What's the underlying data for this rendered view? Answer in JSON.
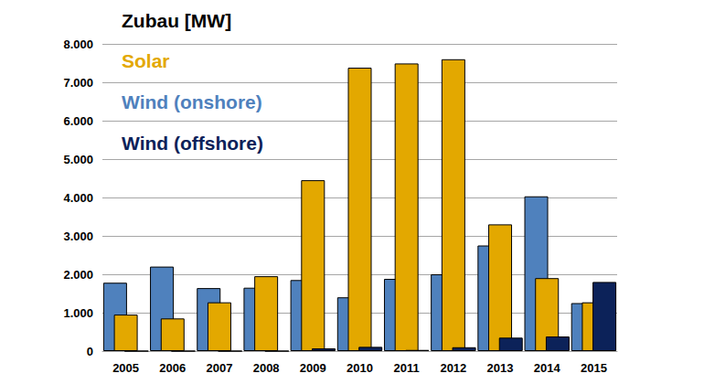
{
  "chart_data": {
    "type": "bar",
    "title": "Zubau [MW]",
    "categories": [
      "2005",
      "2006",
      "2007",
      "2008",
      "2009",
      "2010",
      "2011",
      "2012",
      "2013",
      "2014",
      "2015"
    ],
    "series": [
      {
        "name": "Solar",
        "color": "#e3a800",
        "values": [
          950,
          850,
          1270,
          1950,
          4450,
          7380,
          7490,
          7600,
          3300,
          1900,
          1270
        ]
      },
      {
        "name": "Wind (onshore)",
        "color": "#4f81bd",
        "values": [
          1780,
          2200,
          1640,
          1650,
          1850,
          1400,
          1880,
          2000,
          2750,
          4030,
          1250
        ]
      },
      {
        "name": "Wind (offshore)",
        "color": "#0c2259",
        "values": [
          0,
          0,
          0,
          0,
          70,
          110,
          30,
          100,
          350,
          380,
          1800
        ]
      }
    ],
    "ylim": [
      0,
      8000
    ],
    "yticks": [
      0,
      {
        "value": 1000,
        "label": "1.000"
      },
      {
        "value": 2000,
        "label": "2.000"
      },
      {
        "value": 3000,
        "label": "3.000"
      },
      {
        "value": 4000,
        "label": "4.000"
      },
      {
        "value": 5000,
        "label": "5.000"
      },
      {
        "value": 6000,
        "label": "6.000"
      },
      {
        "value": 7000,
        "label": "7.000"
      },
      {
        "value": 8000,
        "label": "8.000"
      }
    ],
    "grid": true,
    "legend": "top-left"
  }
}
